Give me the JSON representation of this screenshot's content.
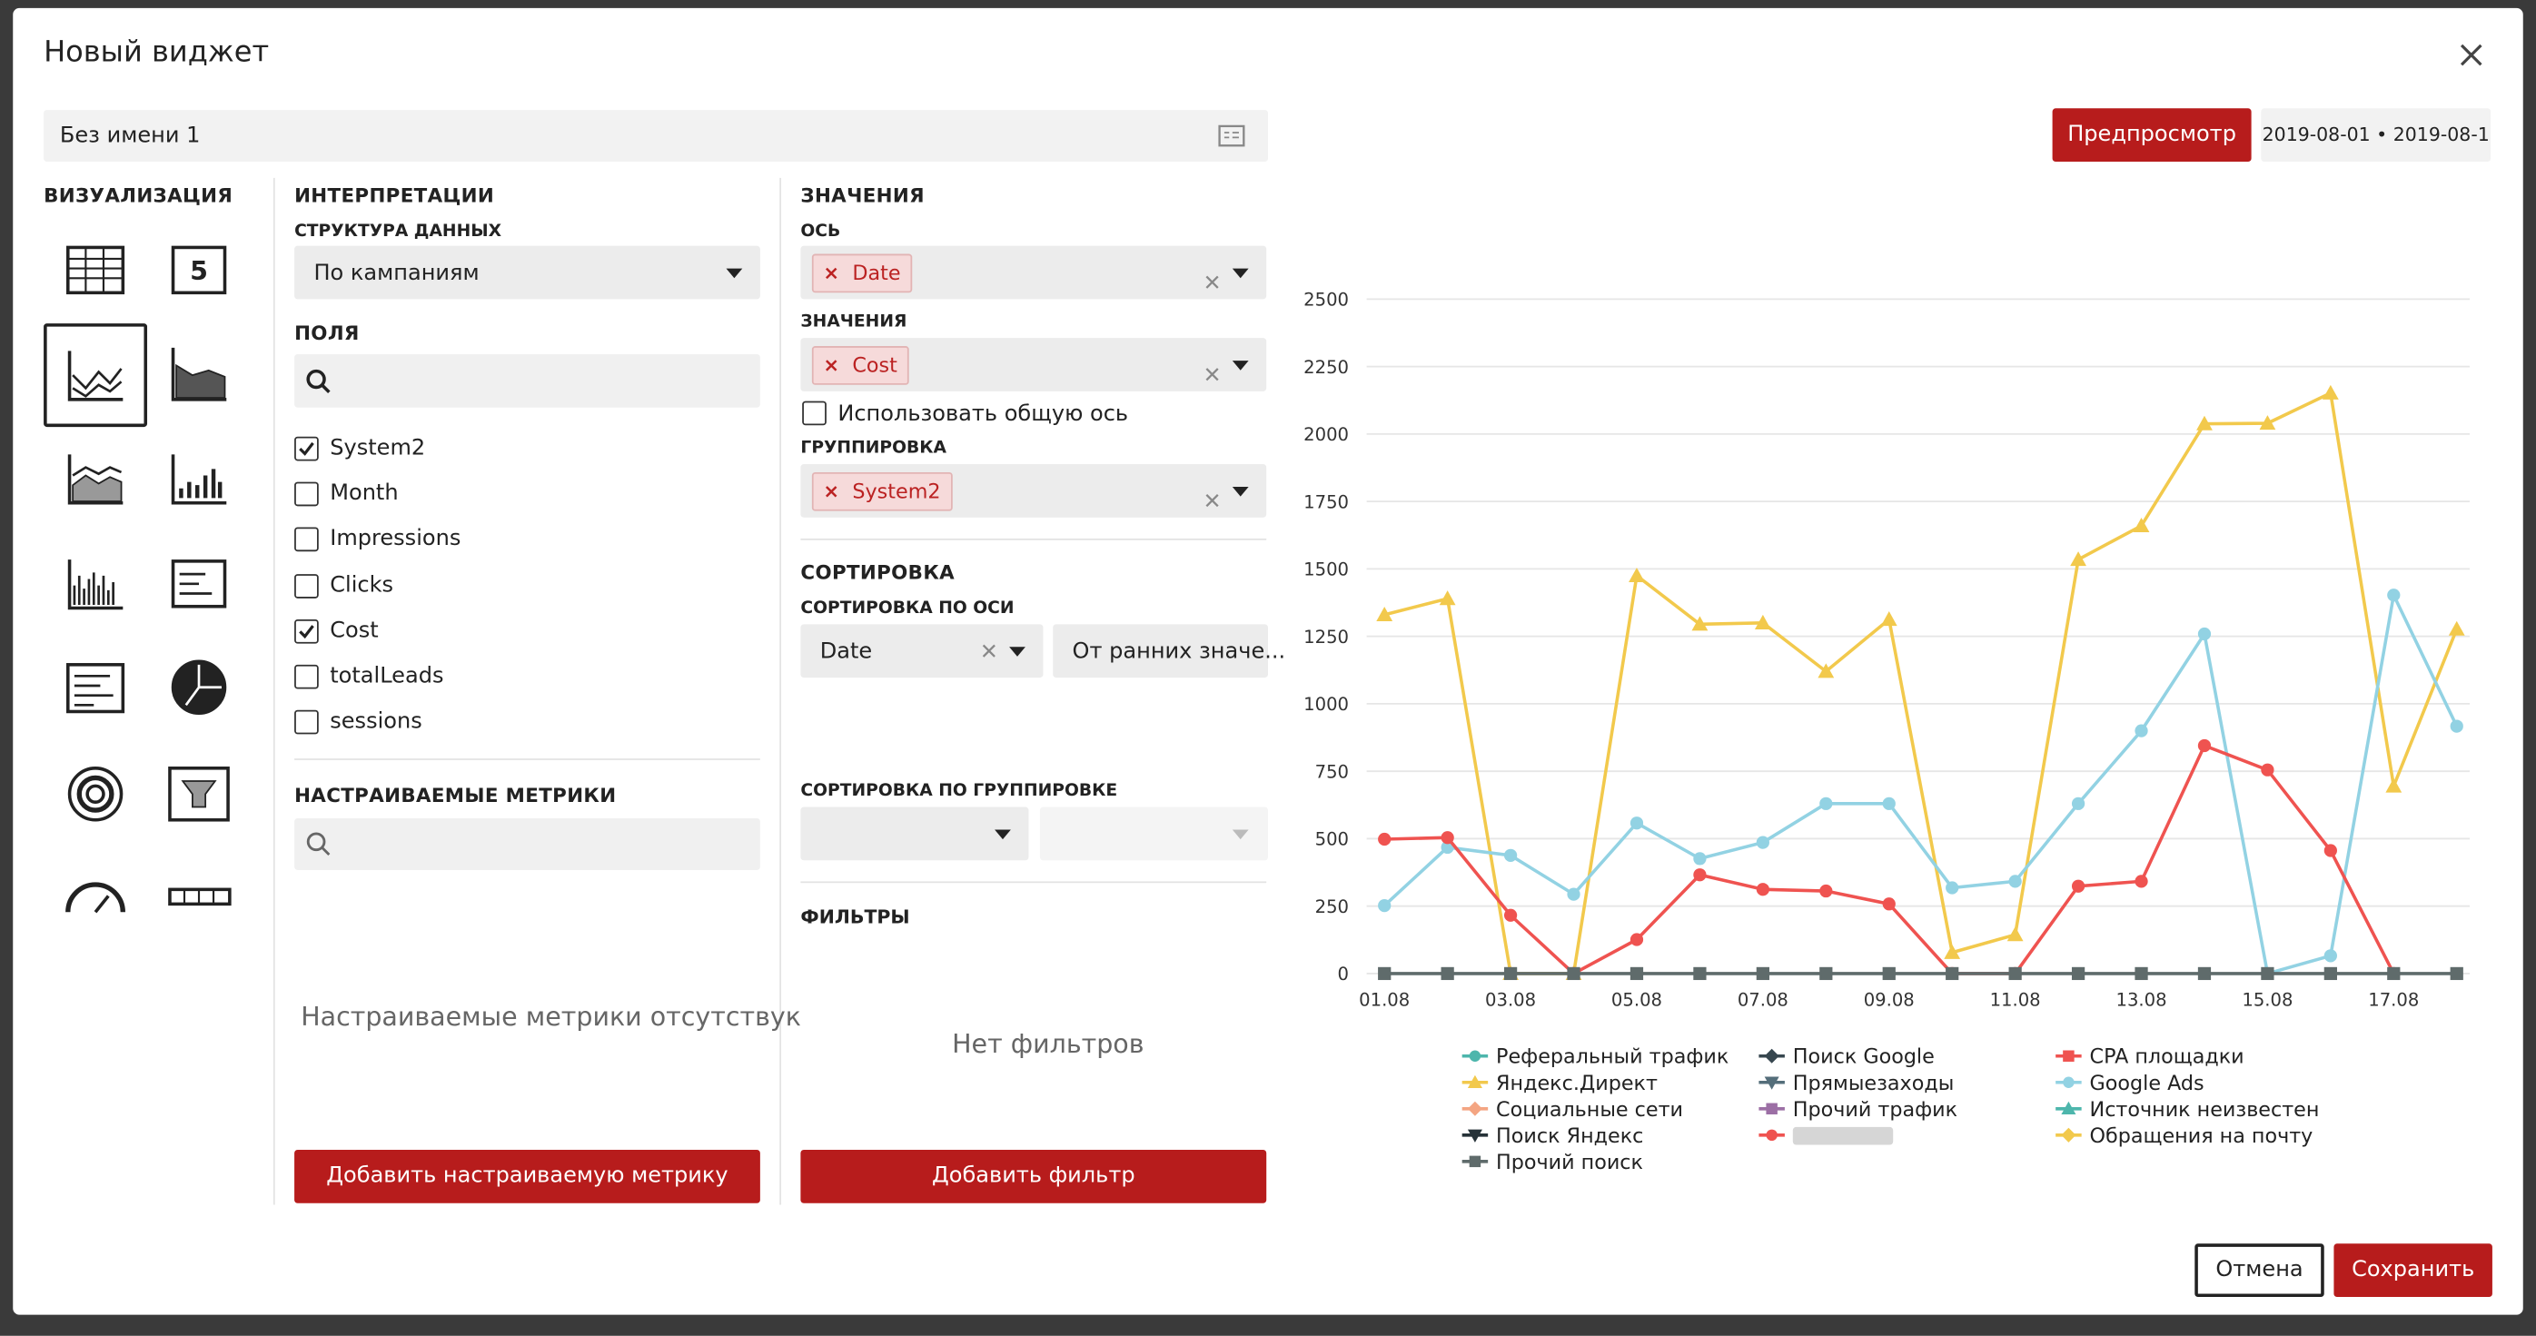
{
  "dialog": {
    "title": "Новый виджет",
    "name_input": "Без имени 1",
    "preview_button": "Предпросмотр",
    "date_range": "2019-08-01 • 2019-08-1",
    "visualization": {
      "heading": "ВИЗУАЛИЗАЦИЯ",
      "number_icon": "5"
    },
    "interpretations": {
      "heading": "ИНТЕРПРЕТАЦИИ",
      "data_structure_label": "СТРУКТУРА ДАННЫХ",
      "data_structure_value": "По кампаниям",
      "fields_label": "ПОЛЯ",
      "fields": [
        {
          "label": "System2",
          "checked": true
        },
        {
          "label": "Month",
          "checked": false
        },
        {
          "label": "Impressions",
          "checked": false
        },
        {
          "label": "Clicks",
          "checked": false
        },
        {
          "label": "Cost",
          "checked": true
        },
        {
          "label": "totalLeads",
          "checked": false
        },
        {
          "label": "sessions",
          "checked": false
        }
      ],
      "custom_metrics_label": "НАСТРАИВАЕМЫЕ МЕТРИКИ",
      "custom_metrics_empty": "Настраиваемые метрики отсутствук",
      "add_metric_button": "Добавить настраиваемую метрику"
    },
    "values": {
      "heading": "ЗНАЧЕНИЯ",
      "axis_label": "ОСЬ",
      "axis_tag": "Date",
      "values_label": "ЗНАЧЕНИЯ",
      "values_tag": "Cost",
      "common_axis_label": "Использовать общую ось",
      "common_axis_checked": false,
      "grouping_label": "ГРУППИРОВКА",
      "grouping_tag": "System2",
      "sorting_heading": "СОРТИРОВКА",
      "sort_axis_label": "СОРТИРОВКА ПО ОСИ",
      "sort_axis_field": "Date",
      "sort_axis_order": "От ранних значе...",
      "sort_group_label": "СОРТИРОВКА ПО ГРУППИРОВКЕ",
      "filters_label": "ФИЛЬТРЫ",
      "filters_empty": "Нет фильтров",
      "add_filter_button": "Добавить фильтр"
    },
    "footer": {
      "cancel": "Отмена",
      "save": "Сохранить"
    }
  },
  "chart": {
    "type": "line",
    "categories": [
      "01.08",
      null,
      "03.08",
      null,
      "05.08",
      null,
      "07.08",
      null,
      "09.08",
      null,
      "11.08",
      null,
      "13.08",
      null,
      "15.08",
      null,
      "17.08",
      null
    ],
    "ylim": [
      0,
      2500
    ],
    "yticks": [
      0,
      250,
      500,
      750,
      1000,
      1250,
      1500,
      1750,
      2000,
      2250,
      2500
    ],
    "grid": true,
    "series": [
      {
        "name": "Реферальный трафик",
        "color": "#4db6ac",
        "marker": "circle"
      },
      {
        "name": "Поиск Google",
        "color": "#37474f",
        "marker": "diamond"
      },
      {
        "name": "CPA площадки",
        "color": "#ef5350",
        "marker": "square"
      },
      {
        "name": "Яндекс.Директ",
        "color": "#f2c94c",
        "marker": "triangle",
        "values": [
          1330,
          1390,
          0,
          0,
          1475,
          1295,
          1300,
          1120,
          1313,
          78,
          144,
          1535,
          1660,
          2038,
          2040,
          2152,
          695,
          1277
        ]
      },
      {
        "name": "Прямыезаходы",
        "color": "#546e7a",
        "marker": "triangle-down"
      },
      {
        "name": "Google Ads",
        "color": "#92d2e3",
        "marker": "circle",
        "values": [
          252,
          468,
          438,
          294,
          558,
          426,
          486,
          630,
          630,
          318,
          342,
          630,
          900,
          1259,
          0,
          66,
          1403,
          917
        ]
      },
      {
        "name": "Социальные сети",
        "color": "#f4a582",
        "marker": "diamond"
      },
      {
        "name": "Прочий трафик",
        "color": "#9c6fa5",
        "marker": "square"
      },
      {
        "name": "Источник неизвестен",
        "color": "#4db6ac",
        "marker": "triangle"
      },
      {
        "name": "Поиск Яндекс",
        "color": "#263238",
        "marker": "triangle-down"
      },
      {
        "name": null,
        "color": "#ef5350",
        "marker": "circle",
        "values": [
          498,
          504,
          216,
          0,
          126,
          366,
          312,
          306,
          258,
          0,
          0,
          324,
          342,
          845,
          755,
          456,
          0,
          null
        ]
      },
      {
        "name": "Обращения на почту",
        "color": "#f2c94c",
        "marker": "diamond"
      },
      {
        "name": "Прочий поиск",
        "color": "#5f6b6b",
        "marker": "square",
        "values": [
          0,
          0,
          0,
          0,
          0,
          0,
          0,
          0,
          0,
          0,
          0,
          0,
          0,
          0,
          0,
          0,
          0,
          0
        ]
      }
    ]
  }
}
